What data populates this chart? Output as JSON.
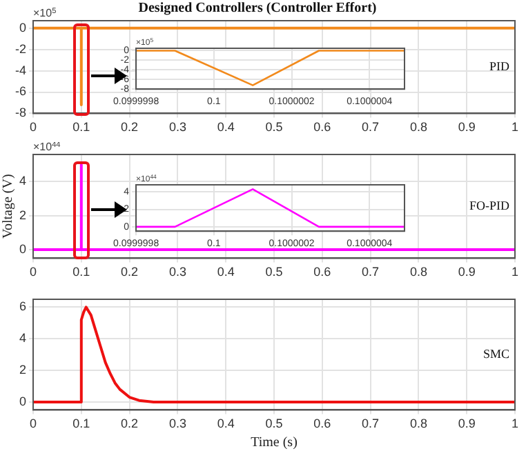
{
  "chart_data": [
    {
      "type": "line",
      "title": "Designed Controllers (Controller Effort)",
      "annotations": [
        "×10$^{5}$"
      ],
      "xlim": [
        0,
        1
      ],
      "xticks": [
        0,
        0.1,
        0.2,
        0.3,
        0.4,
        0.5,
        0.6,
        0.7,
        0.8,
        0.9,
        1
      ],
      "ylim": [
        -8,
        0.7
      ],
      "yticks": [
        -8,
        -6,
        -4,
        -2,
        0
      ],
      "grid": true,
      "legend": false,
      "marker": "none",
      "series": [
        {
          "name": "PID",
          "color": "#f28a1c",
          "x": [
            0,
            0.1,
            0.1,
            0.1,
            1
          ],
          "values": [
            0,
            0,
            -7.2,
            0,
            0
          ]
        }
      ]
    },
    {
      "type": "line",
      "annotations": [
        "×10$^{5}$"
      ],
      "xlim": [
        0.0999998,
        0.10000049
      ],
      "xticks": [
        0.0999998,
        0.1,
        0.1000002,
        0.1000004
      ],
      "ylim": [
        -8,
        0.5
      ],
      "yticks": [
        -8,
        -6,
        -4,
        -2,
        0
      ],
      "grid": true,
      "legend": false,
      "marker": "none",
      "series": [
        {
          "color": "#f28a1c",
          "x": [
            0.0999998,
            0.0999999,
            0.1000001,
            0.10000027,
            0.10000049
          ],
          "values": [
            0,
            0,
            -7.2,
            0,
            0
          ]
        }
      ]
    },
    {
      "type": "line",
      "ylabel": "Voltage (V)",
      "annotations": [
        "×10$^{44}$"
      ],
      "xlim": [
        0,
        1
      ],
      "xticks": [
        0,
        0.1,
        0.2,
        0.3,
        0.4,
        0.5,
        0.6,
        0.7,
        0.8,
        0.9,
        1
      ],
      "ylim": [
        -0.5,
        5.6
      ],
      "yticks": [
        0,
        2,
        4
      ],
      "grid": true,
      "legend": false,
      "marker": "none",
      "series": [
        {
          "name": "FO-PID",
          "color": "#ff00ff",
          "x": [
            0,
            0.1,
            0.1,
            0.1,
            1
          ],
          "values": [
            0,
            0,
            5,
            0,
            0
          ]
        }
      ]
    },
    {
      "type": "line",
      "annotations": [
        "×10$^{44}$"
      ],
      "xlim": [
        0.0999998,
        0.10000049
      ],
      "xticks": [
        0.0999998,
        0.1,
        0.1000002,
        0.1000004
      ],
      "ylim": [
        -0.5,
        4.8
      ],
      "yticks": [
        0,
        2,
        4
      ],
      "grid": true,
      "legend": false,
      "marker": "none",
      "series": [
        {
          "color": "#ff00ff",
          "x": [
            0.0999998,
            0.0999999,
            0.1000001,
            0.10000027,
            0.10000049
          ],
          "values": [
            0,
            0,
            4.3,
            0,
            0
          ]
        }
      ]
    },
    {
      "type": "line",
      "xlabel": "Time (s)",
      "xlim": [
        0,
        1
      ],
      "xticks": [
        0,
        0.1,
        0.2,
        0.3,
        0.4,
        0.5,
        0.6,
        0.7,
        0.8,
        0.9,
        1
      ],
      "ylim": [
        -0.5,
        6.5
      ],
      "yticks": [
        0,
        2,
        4,
        6
      ],
      "grid": true,
      "legend": false,
      "marker": "none",
      "series": [
        {
          "name": "SMC",
          "color": "#ee1111",
          "x": [
            0,
            0.1,
            0.1,
            0.105,
            0.11,
            0.12,
            0.13,
            0.14,
            0.15,
            0.16,
            0.17,
            0.18,
            0.2,
            0.22,
            0.25,
            0.3,
            1
          ],
          "values": [
            0,
            0,
            5.2,
            5.7,
            6,
            5.5,
            4.5,
            3.5,
            2.5,
            1.8,
            1.2,
            0.8,
            0.3,
            0.1,
            0,
            0,
            0
          ]
        }
      ]
    }
  ]
}
